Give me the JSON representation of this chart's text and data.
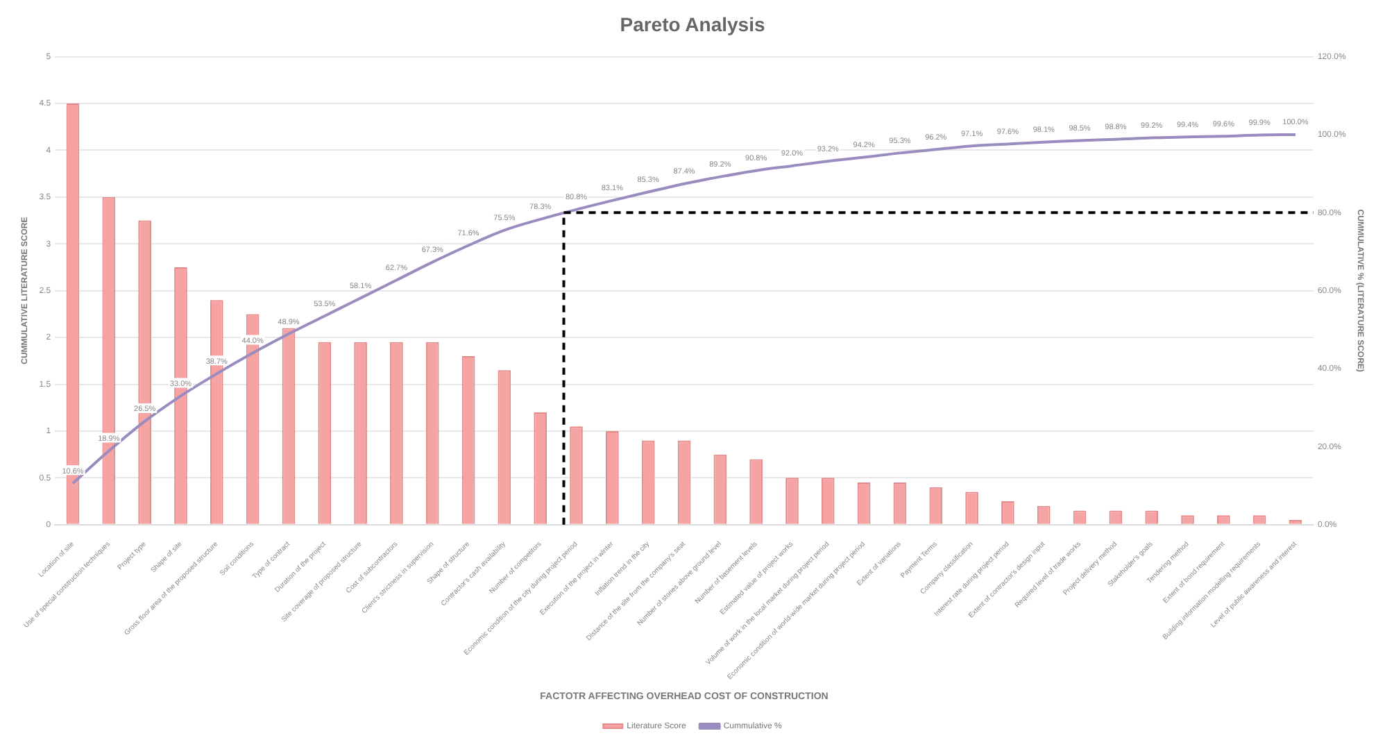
{
  "chart_data": {
    "type": "bar",
    "title": "Pareto Analysis",
    "xlabel": "FACTOTR AFFECTING OVERHEAD COST OF CONSTRUCTION",
    "ylabel": "CUMMULATIVE LITERATURE SCORE",
    "y2label": "CUMMULATIVE % (LITERATURE SCORE)",
    "categories": [
      "Location of site",
      "Use of special construction techniques",
      "Project type",
      "Shape of site",
      "Gross floor area of the proposed structure",
      "Soil conditions",
      "Type of contract",
      "Duration of the project",
      "Site coverage of proposed structure",
      "Cost of subcontractors",
      "Client's strictness in supervision",
      "Shape of structure",
      "Contractor's cash availability",
      "Number of competitors",
      "Economic condition of the city during project period",
      "Execution of the project in winter",
      "Inflation trend in the city",
      "Distance of the site from the company's seat",
      "Number of stories above ground level",
      "Number of basement levels",
      "Estimated value of project works",
      "Volume of work in the local market during project period",
      "Economic condition of world-wide market during project period",
      "Extent of variations",
      "Payment Terms",
      "Company classification",
      "Interest rate during project period",
      "Extent of contractor's design input",
      "Required level of trade works",
      "Project delivery method",
      "Stakeholder's goals",
      "Tendering method",
      "Extent of bond requirement",
      "Building information modelling requirements",
      "Level of public awareness and interest"
    ],
    "series": [
      {
        "name": "Literature Score",
        "color": "#f5a3a3",
        "values": [
          4.5,
          3.5,
          3.25,
          2.75,
          2.4,
          2.25,
          2.1,
          1.95,
          1.95,
          1.95,
          1.95,
          1.8,
          1.65,
          1.2,
          1.05,
          1.0,
          0.9,
          0.9,
          0.75,
          0.7,
          0.5,
          0.5,
          0.45,
          0.45,
          0.4,
          0.35,
          0.25,
          0.2,
          0.15,
          0.15,
          0.15,
          0.1,
          0.1,
          0.1,
          0.05
        ]
      },
      {
        "name": "Cummulative %",
        "type": "line",
        "axis": "y2",
        "color": "#9a8cbf",
        "values": [
          10.6,
          18.9,
          26.5,
          33.0,
          38.7,
          44.0,
          48.9,
          53.5,
          58.1,
          62.7,
          67.3,
          71.6,
          75.5,
          78.3,
          80.8,
          83.1,
          85.3,
          87.4,
          89.2,
          90.8,
          92.0,
          93.2,
          94.2,
          95.3,
          96.2,
          97.1,
          97.6,
          98.1,
          98.5,
          98.8,
          99.2,
          99.4,
          99.6,
          99.9,
          100.0
        ],
        "value_labels": [
          "10.6%",
          "18.9%",
          "26.5%",
          "33.0%",
          "38.7%",
          "44.0%",
          "48.9%",
          "53.5%",
          "58.1%",
          "62.7%",
          "67.3%",
          "71.6%",
          "75.5%",
          "78.3%",
          "80.8%",
          "83.1%",
          "85.3%",
          "87.4%",
          "89.2%",
          "90.8%",
          "92.0%",
          "93.2%",
          "94.2%",
          "95.3%",
          "96.2%",
          "97.1%",
          "97.6%",
          "98.1%",
          "98.5%",
          "98.8%",
          "99.2%",
          "99.4%",
          "99.6%",
          "99.9%",
          "100.0%"
        ]
      }
    ],
    "ylim": [
      0,
      5
    ],
    "yticks": [
      0,
      0.5,
      1,
      1.5,
      2,
      2.5,
      3,
      3.5,
      4,
      4.5,
      5
    ],
    "y2lim": [
      0,
      120
    ],
    "y2ticks": [
      {
        "value": 0,
        "label": "0.0%"
      },
      {
        "value": 20,
        "label": "20.0%"
      },
      {
        "value": 40,
        "label": "40.0%"
      },
      {
        "value": 60,
        "label": "60.0%"
      },
      {
        "value": 80,
        "label": "80.0%"
      },
      {
        "value": 100,
        "label": "100.0%"
      },
      {
        "value": 120,
        "label": "120.0%"
      }
    ],
    "ref_lines": [
      {
        "axis": "y2",
        "value": 80,
        "color": "#000000",
        "line_style": "dashed"
      },
      {
        "axis": "x",
        "value": "Economic condition of the city during project period",
        "color": "#000000",
        "line_style": "dashed"
      }
    ],
    "grid": "y",
    "legend": "bottom",
    "marker": "none",
    "line_style": "solid"
  }
}
